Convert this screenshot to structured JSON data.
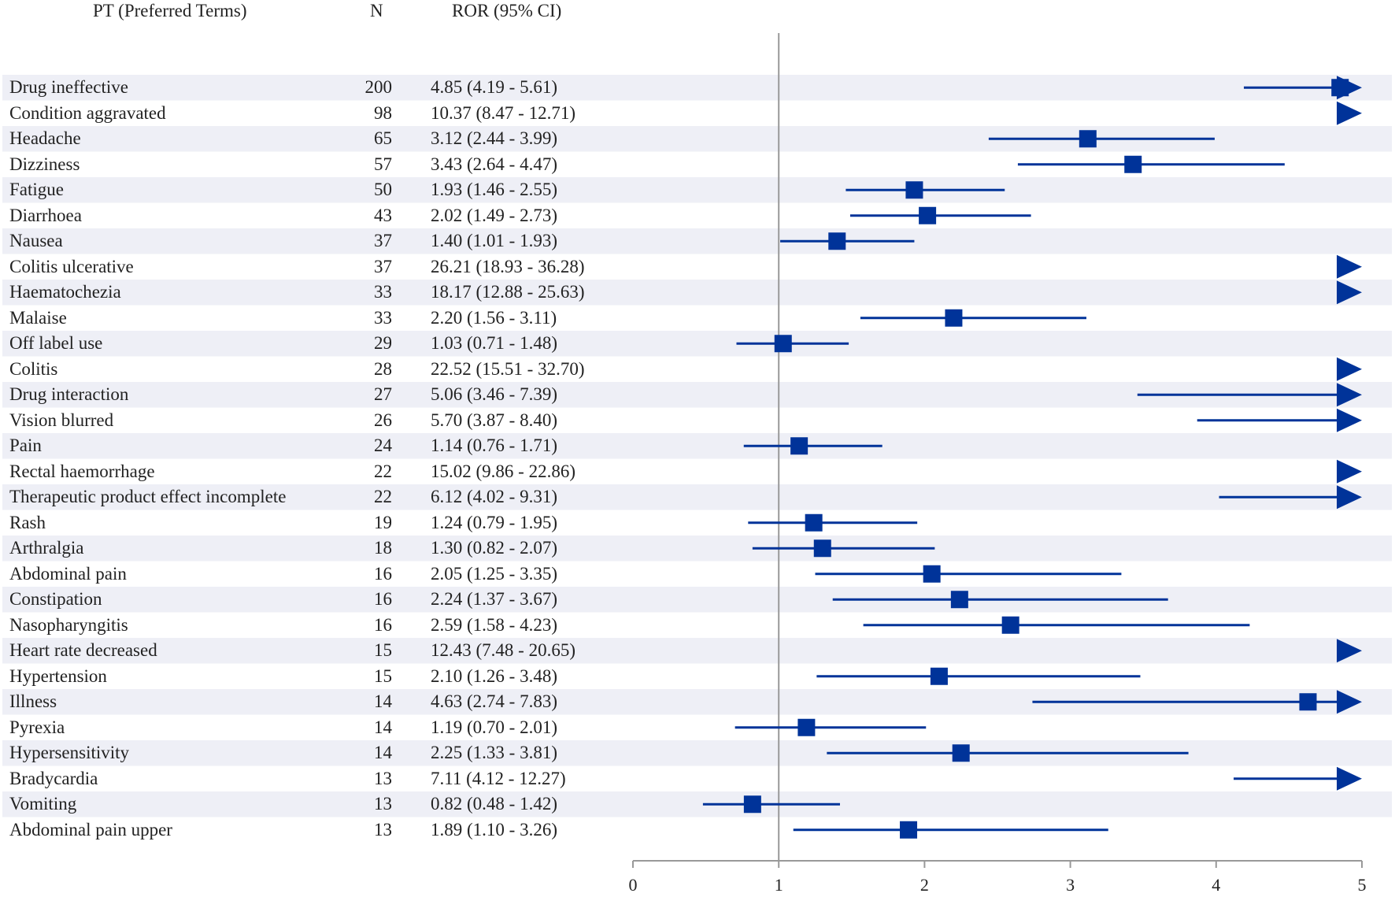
{
  "chart_data": {
    "type": "forest",
    "headers": {
      "term": "PT (Preferred Terms)",
      "n": "N",
      "ror": "ROR (95% CI)"
    },
    "xlim": [
      0,
      5
    ],
    "reference_line": 1,
    "ticks": [
      "0",
      "1",
      "2",
      "3",
      "4",
      "5"
    ],
    "colors": {
      "marker": "#003399",
      "band": "#eeeff6",
      "refline": "#999999",
      "axis": "#999999"
    },
    "rows": [
      {
        "term": "Drug ineffective",
        "n": "200",
        "label": "4.85 (4.19 - 5.61)",
        "ror": 4.85,
        "lower": 4.19,
        "upper": 5.61
      },
      {
        "term": "Condition aggravated",
        "n": "98",
        "label": "10.37 (8.47 - 12.71)",
        "ror": 10.37,
        "lower": 8.47,
        "upper": 12.71
      },
      {
        "term": "Headache",
        "n": "65",
        "label": "3.12 (2.44 - 3.99)",
        "ror": 3.12,
        "lower": 2.44,
        "upper": 3.99
      },
      {
        "term": "Dizziness",
        "n": "57",
        "label": "3.43 (2.64 - 4.47)",
        "ror": 3.43,
        "lower": 2.64,
        "upper": 4.47
      },
      {
        "term": "Fatigue",
        "n": "50",
        "label": "1.93 (1.46 - 2.55)",
        "ror": 1.93,
        "lower": 1.46,
        "upper": 2.55
      },
      {
        "term": "Diarrhoea",
        "n": "43",
        "label": "2.02 (1.49 - 2.73)",
        "ror": 2.02,
        "lower": 1.49,
        "upper": 2.73
      },
      {
        "term": "Nausea",
        "n": "37",
        "label": "1.40 (1.01 - 1.93)",
        "ror": 1.4,
        "lower": 1.01,
        "upper": 1.93
      },
      {
        "term": "Colitis ulcerative",
        "n": "37",
        "label": "26.21 (18.93 - 36.28)",
        "ror": 26.21,
        "lower": 18.93,
        "upper": 36.28
      },
      {
        "term": "Haematochezia",
        "n": "33",
        "label": "18.17 (12.88 - 25.63)",
        "ror": 18.17,
        "lower": 12.88,
        "upper": 25.63
      },
      {
        "term": "Malaise",
        "n": "33",
        "label": "2.20 (1.56 - 3.11)",
        "ror": 2.2,
        "lower": 1.56,
        "upper": 3.11
      },
      {
        "term": "Off label use",
        "n": "29",
        "label": "1.03 (0.71 - 1.48)",
        "ror": 1.03,
        "lower": 0.71,
        "upper": 1.48
      },
      {
        "term": "Colitis",
        "n": "28",
        "label": "22.52 (15.51 - 32.70)",
        "ror": 22.52,
        "lower": 15.51,
        "upper": 32.7
      },
      {
        "term": "Drug interaction",
        "n": "27",
        "label": "5.06 (3.46 - 7.39)",
        "ror": 5.06,
        "lower": 3.46,
        "upper": 7.39
      },
      {
        "term": "Vision blurred",
        "n": "26",
        "label": "5.70 (3.87 - 8.40)",
        "ror": 5.7,
        "lower": 3.87,
        "upper": 8.4
      },
      {
        "term": "Pain",
        "n": "24",
        "label": "1.14 (0.76 - 1.71)",
        "ror": 1.14,
        "lower": 0.76,
        "upper": 1.71
      },
      {
        "term": "Rectal haemorrhage",
        "n": "22",
        "label": "15.02 (9.86 - 22.86)",
        "ror": 15.02,
        "lower": 9.86,
        "upper": 22.86
      },
      {
        "term": "Therapeutic product effect incomplete",
        "n": "22",
        "label": "6.12 (4.02 - 9.31)",
        "ror": 6.12,
        "lower": 4.02,
        "upper": 9.31
      },
      {
        "term": "Rash",
        "n": "19",
        "label": "1.24 (0.79 - 1.95)",
        "ror": 1.24,
        "lower": 0.79,
        "upper": 1.95
      },
      {
        "term": "Arthralgia",
        "n": "18",
        "label": "1.30 (0.82 - 2.07)",
        "ror": 1.3,
        "lower": 0.82,
        "upper": 2.07
      },
      {
        "term": "Abdominal pain",
        "n": "16",
        "label": "2.05 (1.25 - 3.35)",
        "ror": 2.05,
        "lower": 1.25,
        "upper": 3.35
      },
      {
        "term": "Constipation",
        "n": "16",
        "label": "2.24 (1.37 - 3.67)",
        "ror": 2.24,
        "lower": 1.37,
        "upper": 3.67
      },
      {
        "term": "Nasopharyngitis",
        "n": "16",
        "label": "2.59 (1.58 - 4.23)",
        "ror": 2.59,
        "lower": 1.58,
        "upper": 4.23
      },
      {
        "term": "Heart rate decreased",
        "n": "15",
        "label": "12.43 (7.48 - 20.65)",
        "ror": 12.43,
        "lower": 7.48,
        "upper": 20.65
      },
      {
        "term": "Hypertension",
        "n": "15",
        "label": "2.10 (1.26 - 3.48)",
        "ror": 2.1,
        "lower": 1.26,
        "upper": 3.48
      },
      {
        "term": "Illness",
        "n": "14",
        "label": "4.63 (2.74 - 7.83)",
        "ror": 4.63,
        "lower": 2.74,
        "upper": 7.83
      },
      {
        "term": "Pyrexia",
        "n": "14",
        "label": "1.19 (0.70 - 2.01)",
        "ror": 1.19,
        "lower": 0.7,
        "upper": 2.01
      },
      {
        "term": "Hypersensitivity",
        "n": "14",
        "label": "2.25 (1.33 - 3.81)",
        "ror": 2.25,
        "lower": 1.33,
        "upper": 3.81
      },
      {
        "term": "Bradycardia",
        "n": "13",
        "label": "7.11 (4.12 - 12.27)",
        "ror": 7.11,
        "lower": 4.12,
        "upper": 12.27
      },
      {
        "term": "Vomiting",
        "n": "13",
        "label": "0.82 (0.48 - 1.42)",
        "ror": 0.82,
        "lower": 0.48,
        "upper": 1.42
      },
      {
        "term": "Abdominal pain upper",
        "n": "13",
        "label": "1.89 (1.10 - 3.26)",
        "ror": 1.89,
        "lower": 1.1,
        "upper": 3.26
      }
    ]
  }
}
